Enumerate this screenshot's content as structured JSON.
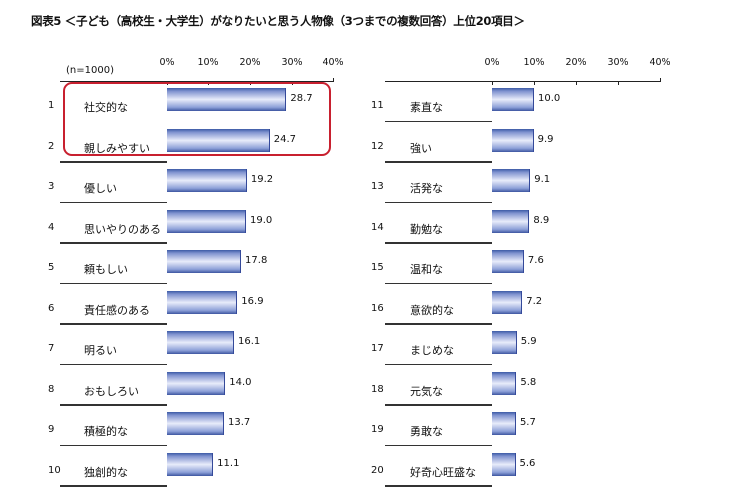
{
  "title": "図表5 ＜子ども（高校生・大学生）がなりたいと思う人物像（3つまでの複数回答）上位20項目＞",
  "sample_note": "(n=1000)",
  "axis_ticks": [
    "0%",
    "10%",
    "20%",
    "30%",
    "40%"
  ],
  "highlight_color": "#c8202f",
  "bar_color": "#3c5aa6",
  "left_panel": {
    "items": [
      {
        "rank": "1",
        "label": "社交的な",
        "value": "28.7"
      },
      {
        "rank": "2",
        "label": "親しみやすい",
        "value": "24.7"
      },
      {
        "rank": "3",
        "label": "優しい",
        "value": "19.2"
      },
      {
        "rank": "4",
        "label": "思いやりのある",
        "value": "19.0"
      },
      {
        "rank": "5",
        "label": "頼もしい",
        "value": "17.8"
      },
      {
        "rank": "6",
        "label": "責任感のある",
        "value": "16.9"
      },
      {
        "rank": "7",
        "label": "明るい",
        "value": "16.1"
      },
      {
        "rank": "8",
        "label": "おもしろい",
        "value": "14.0"
      },
      {
        "rank": "9",
        "label": "積極的な",
        "value": "13.7"
      },
      {
        "rank": "10",
        "label": "独創的な",
        "value": "11.1"
      }
    ]
  },
  "right_panel": {
    "items": [
      {
        "rank": "11",
        "label": "素直な",
        "value": "10.0"
      },
      {
        "rank": "12",
        "label": "強い",
        "value": "9.9"
      },
      {
        "rank": "13",
        "label": "活発な",
        "value": "9.1"
      },
      {
        "rank": "14",
        "label": "勤勉な",
        "value": "8.9"
      },
      {
        "rank": "15",
        "label": "温和な",
        "value": "7.6"
      },
      {
        "rank": "16",
        "label": "意欲的な",
        "value": "7.2"
      },
      {
        "rank": "17",
        "label": "まじめな",
        "value": "5.9"
      },
      {
        "rank": "18",
        "label": "元気な",
        "value": "5.8"
      },
      {
        "rank": "19",
        "label": "勇敢な",
        "value": "5.7"
      },
      {
        "rank": "20",
        "label": "好奇心旺盛な",
        "value": "5.6"
      }
    ]
  },
  "chart_data": {
    "type": "bar",
    "orientation": "horizontal",
    "title": "図表5 ＜子ども（高校生・大学生）がなりたいと思う人物像（3つまでの複数回答）上位20項目＞",
    "subtitle": "(n=1000)",
    "xlabel": "",
    "ylabel": "",
    "xlim": [
      0,
      40
    ],
    "x_ticks": [
      "0%",
      "10%",
      "20%",
      "30%",
      "40%"
    ],
    "grid": false,
    "legend": null,
    "annotations": [
      "Ranks 1–2 (社交的な, 親しみやすい) highlighted with red rounded box"
    ],
    "categories": [
      "社交的な",
      "親しみやすい",
      "優しい",
      "思いやりのある",
      "頼もしい",
      "責任感のある",
      "明るい",
      "おもしろい",
      "積極的な",
      "独創的な",
      "素直な",
      "強い",
      "活発な",
      "勤勉な",
      "温和な",
      "意欲的な",
      "まじめな",
      "元気な",
      "勇敢な",
      "好奇心旺盛な"
    ],
    "values": [
      28.7,
      24.7,
      19.2,
      19.0,
      17.8,
      16.9,
      16.1,
      14.0,
      13.7,
      11.1,
      10.0,
      9.9,
      9.1,
      8.9,
      7.6,
      7.2,
      5.9,
      5.8,
      5.7,
      5.6
    ],
    "units": "%"
  }
}
